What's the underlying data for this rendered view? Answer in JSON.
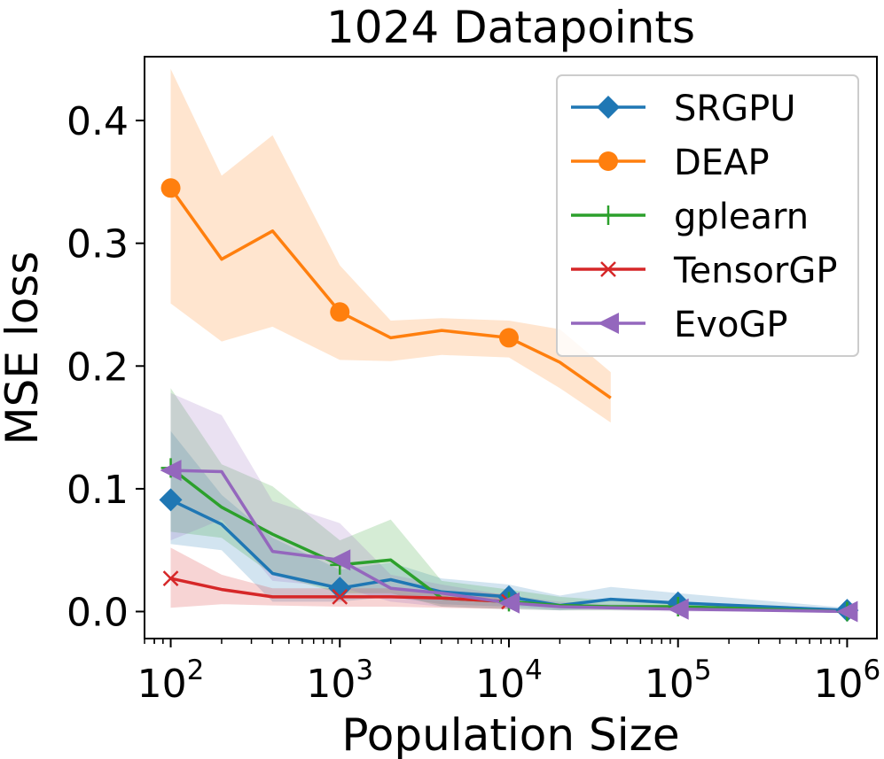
{
  "chart_data": {
    "type": "line",
    "title": "1024 Datapoints",
    "xlabel": "Population Size",
    "ylabel": "MSE loss",
    "xscale": "log",
    "xlim": [
      70,
      1500000
    ],
    "ylim": [
      -0.022,
      0.452
    ],
    "x_ticks": [
      {
        "value": 100,
        "base": "10",
        "exp": "2"
      },
      {
        "value": 1000,
        "base": "10",
        "exp": "3"
      },
      {
        "value": 10000,
        "base": "10",
        "exp": "4"
      },
      {
        "value": 100000,
        "base": "10",
        "exp": "5"
      },
      {
        "value": 1000000,
        "base": "10",
        "exp": "6"
      }
    ],
    "y_ticks": [
      {
        "value": 0.0,
        "label": "0.0"
      },
      {
        "value": 0.1,
        "label": "0.1"
      },
      {
        "value": 0.2,
        "label": "0.2"
      },
      {
        "value": 0.3,
        "label": "0.3"
      },
      {
        "value": 0.4,
        "label": "0.4"
      }
    ],
    "legend_position": "top-right",
    "series": [
      {
        "name": "SRGPU",
        "color": "#1f77b4",
        "marker": "diamond",
        "x": [
          100,
          200,
          400,
          1000,
          2000,
          4000,
          10000,
          20000,
          40000,
          100000,
          1000000
        ],
        "y": [
          0.091,
          0.071,
          0.031,
          0.019,
          0.026,
          0.016,
          0.012,
          0.005,
          0.01,
          0.007,
          0.001
        ],
        "lower": [
          0.055,
          0.05,
          0.008,
          0.008,
          0.012,
          0.006,
          0.004,
          0.001,
          0.003,
          0.002,
          0.0
        ],
        "upper": [
          0.147,
          0.095,
          0.06,
          0.034,
          0.04,
          0.027,
          0.022,
          0.013,
          0.02,
          0.015,
          0.003
        ],
        "marker_x": [
          100,
          1000,
          10000,
          100000,
          1000000
        ]
      },
      {
        "name": "DEAP",
        "color": "#ff7f0e",
        "marker": "circle",
        "x": [
          100,
          200,
          400,
          1000,
          2000,
          4000,
          10000,
          20000,
          40000
        ],
        "y": [
          0.345,
          0.287,
          0.31,
          0.244,
          0.223,
          0.229,
          0.223,
          0.203,
          0.174
        ],
        "lower": [
          0.251,
          0.22,
          0.232,
          0.205,
          0.204,
          0.209,
          0.207,
          0.182,
          0.154
        ],
        "upper": [
          0.442,
          0.355,
          0.388,
          0.282,
          0.237,
          0.239,
          0.237,
          0.23,
          0.195
        ],
        "marker_x": [
          100,
          1000,
          10000
        ]
      },
      {
        "name": "gplearn",
        "color": "#2ca02c",
        "marker": "plus",
        "x": [
          100,
          200,
          400,
          1000,
          2000,
          4000,
          10000,
          20000,
          40000,
          100000,
          1000000
        ],
        "y": [
          0.117,
          0.085,
          0.063,
          0.038,
          0.042,
          0.011,
          0.008,
          0.005,
          0.004,
          0.004,
          0.0
        ],
        "lower": [
          0.065,
          0.06,
          0.03,
          0.015,
          0.015,
          0.004,
          0.002,
          0.001,
          0.001,
          0.001,
          0.0
        ],
        "upper": [
          0.182,
          0.12,
          0.102,
          0.058,
          0.075,
          0.025,
          0.018,
          0.012,
          0.009,
          0.008,
          0.002
        ],
        "marker_x": [
          100,
          1000,
          10000,
          100000,
          1000000
        ]
      },
      {
        "name": "TensorGP",
        "color": "#d62728",
        "marker": "x",
        "x": [
          100,
          200,
          400,
          1000,
          2000,
          4000,
          10000
        ],
        "y": [
          0.027,
          0.018,
          0.012,
          0.012,
          0.012,
          0.011,
          0.008
        ],
        "lower": [
          0.003,
          0.006,
          0.005,
          0.004,
          0.004,
          0.003,
          0.002
        ],
        "upper": [
          0.052,
          0.03,
          0.019,
          0.019,
          0.019,
          0.017,
          0.014
        ],
        "marker_x": [
          100,
          1000,
          10000
        ]
      },
      {
        "name": "EvoGP",
        "color": "#9467bd",
        "marker": "triangle-left",
        "x": [
          100,
          200,
          400,
          1000,
          2000,
          4000,
          10000,
          20000,
          40000,
          100000,
          1000000
        ],
        "y": [
          0.115,
          0.114,
          0.049,
          0.042,
          0.019,
          0.015,
          0.007,
          0.004,
          0.003,
          0.002,
          0.0
        ],
        "lower": [
          0.058,
          0.075,
          0.025,
          0.02,
          0.008,
          0.004,
          0.002,
          0.001,
          0.001,
          0.0,
          0.0
        ],
        "upper": [
          0.178,
          0.16,
          0.09,
          0.072,
          0.03,
          0.022,
          0.013,
          0.008,
          0.006,
          0.005,
          0.002
        ],
        "marker_x": [
          100,
          1000,
          10000,
          100000,
          1000000
        ]
      }
    ]
  }
}
